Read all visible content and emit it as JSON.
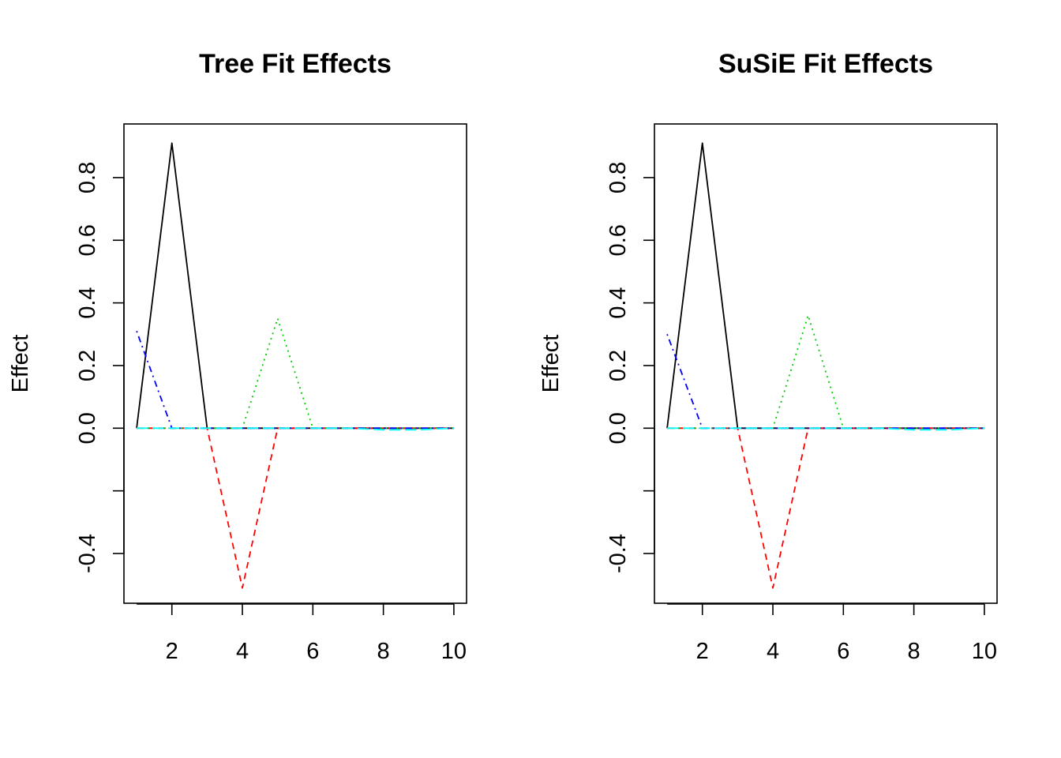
{
  "chart_data": [
    {
      "type": "line",
      "title": "Tree Fit Effects",
      "xlabel": "",
      "ylabel": "Effect",
      "xlim": [
        0.64,
        10.36
      ],
      "ylim": [
        -0.5588,
        0.9712
      ],
      "x": [
        1,
        2,
        3,
        4,
        5,
        6,
        7,
        8,
        9,
        10
      ],
      "xticks": [
        2,
        4,
        6,
        8,
        10
      ],
      "yticks": [
        -0.4,
        -0.2,
        0.0,
        0.2,
        0.4,
        0.6,
        0.8
      ],
      "ytick_labels": [
        "-0.4",
        "",
        "0.0",
        "0.2",
        "0.4",
        "0.6",
        "0.8"
      ],
      "grid": false,
      "series": [
        {
          "color": "#000000",
          "dash": "solid",
          "values": [
            0,
            0.91,
            0,
            0,
            0,
            0,
            0,
            0,
            0,
            0
          ]
        },
        {
          "color": "#ff0000",
          "dash": "dashed",
          "values": [
            0,
            0,
            0,
            -0.51,
            0,
            0,
            0,
            0,
            0,
            0
          ]
        },
        {
          "color": "#00cd00",
          "dash": "dotted",
          "values": [
            0,
            0,
            0,
            0,
            0.35,
            0,
            0,
            0,
            0,
            0
          ]
        },
        {
          "color": "#0000ff",
          "dash": "dotdash",
          "values": [
            0.31,
            0,
            0,
            0,
            0,
            0,
            0,
            0,
            0,
            0
          ]
        },
        {
          "color": "#00ffff",
          "dash": "longdash",
          "values": [
            0,
            0,
            0,
            0,
            0,
            0,
            0,
            -0.005,
            -0.005,
            0
          ]
        }
      ]
    },
    {
      "type": "line",
      "title": "SuSiE Fit Effects",
      "xlabel": "",
      "ylabel": "Effect",
      "xlim": [
        0.64,
        10.36
      ],
      "ylim": [
        -0.5588,
        0.9712
      ],
      "x": [
        1,
        2,
        3,
        4,
        5,
        6,
        7,
        8,
        9,
        10
      ],
      "xticks": [
        2,
        4,
        6,
        8,
        10
      ],
      "yticks": [
        -0.4,
        -0.2,
        0.0,
        0.2,
        0.4,
        0.6,
        0.8
      ],
      "ytick_labels": [
        "-0.4",
        "",
        "0.0",
        "0.2",
        "0.4",
        "0.6",
        "0.8"
      ],
      "grid": false,
      "series": [
        {
          "color": "#000000",
          "dash": "solid",
          "values": [
            0,
            0.91,
            0,
            0,
            0,
            0,
            0,
            0,
            0,
            0
          ]
        },
        {
          "color": "#ff0000",
          "dash": "dashed",
          "values": [
            0,
            0,
            0,
            -0.51,
            0,
            0,
            0,
            0,
            0,
            0
          ]
        },
        {
          "color": "#00cd00",
          "dash": "dotted",
          "values": [
            0,
            0,
            0,
            0,
            0.36,
            0,
            0,
            0,
            0,
            0
          ]
        },
        {
          "color": "#0000ff",
          "dash": "dotdash",
          "values": [
            0.3,
            0,
            0,
            0,
            0,
            0,
            0,
            0,
            0,
            0
          ]
        },
        {
          "color": "#00ffff",
          "dash": "longdash",
          "values": [
            0,
            0,
            0,
            0,
            0,
            0,
            0,
            -0.005,
            -0.005,
            0
          ]
        }
      ]
    }
  ]
}
